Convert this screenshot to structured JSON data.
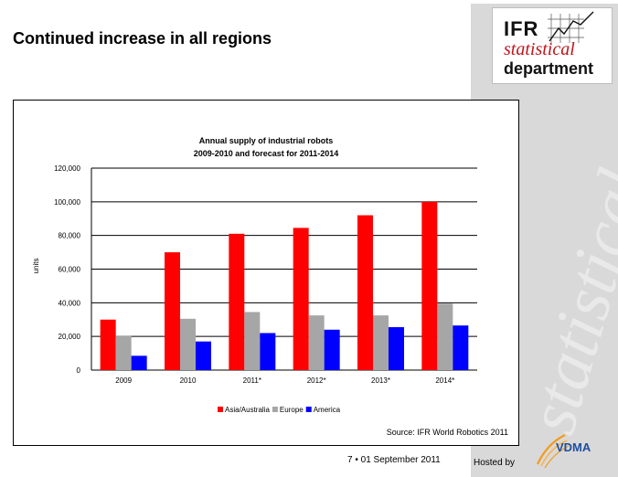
{
  "slide": {
    "title": "Continued increase in all regions",
    "page_number": "7",
    "separator": "•",
    "date": "01 September 2011",
    "hosted_by": "Hosted by"
  },
  "logo": {
    "ifr": "IFR",
    "statistical": "statistical",
    "department": "department",
    "watermark": "statistical"
  },
  "sponsor": {
    "name": "VDMA"
  },
  "colors": {
    "asia": "#ff0000",
    "europe": "#a6a6a6",
    "america": "#0000ff"
  },
  "chart_data": {
    "type": "bar",
    "title": "Annual supply of industrial robots",
    "subtitle": "2009-2010 and forecast for 2011-2014",
    "ylabel": "units",
    "xlabel": "",
    "categories": [
      "2009",
      "2010",
      "2011*",
      "2012*",
      "2013*",
      "2014*"
    ],
    "ylim": [
      0,
      120000
    ],
    "yticks": [
      "0",
      "20,000",
      "40,000",
      "60,000",
      "80,000",
      "100,000",
      "120,000"
    ],
    "ytick_values": [
      0,
      20000,
      40000,
      60000,
      80000,
      100000,
      120000
    ],
    "grid": true,
    "legend_position": "bottom",
    "series": [
      {
        "name": "Asia/Australia",
        "color": "#ff0000",
        "values": [
          30000,
          70000,
          81000,
          84500,
          92000,
          100000
        ]
      },
      {
        "name": "Europe",
        "color": "#a6a6a6",
        "values": [
          20500,
          30500,
          34500,
          32500,
          32500,
          39500
        ]
      },
      {
        "name": "America",
        "color": "#0000ff",
        "values": [
          8500,
          17000,
          22000,
          24000,
          25500,
          26500
        ]
      }
    ],
    "source": "Source: IFR World Robotics 2011"
  }
}
